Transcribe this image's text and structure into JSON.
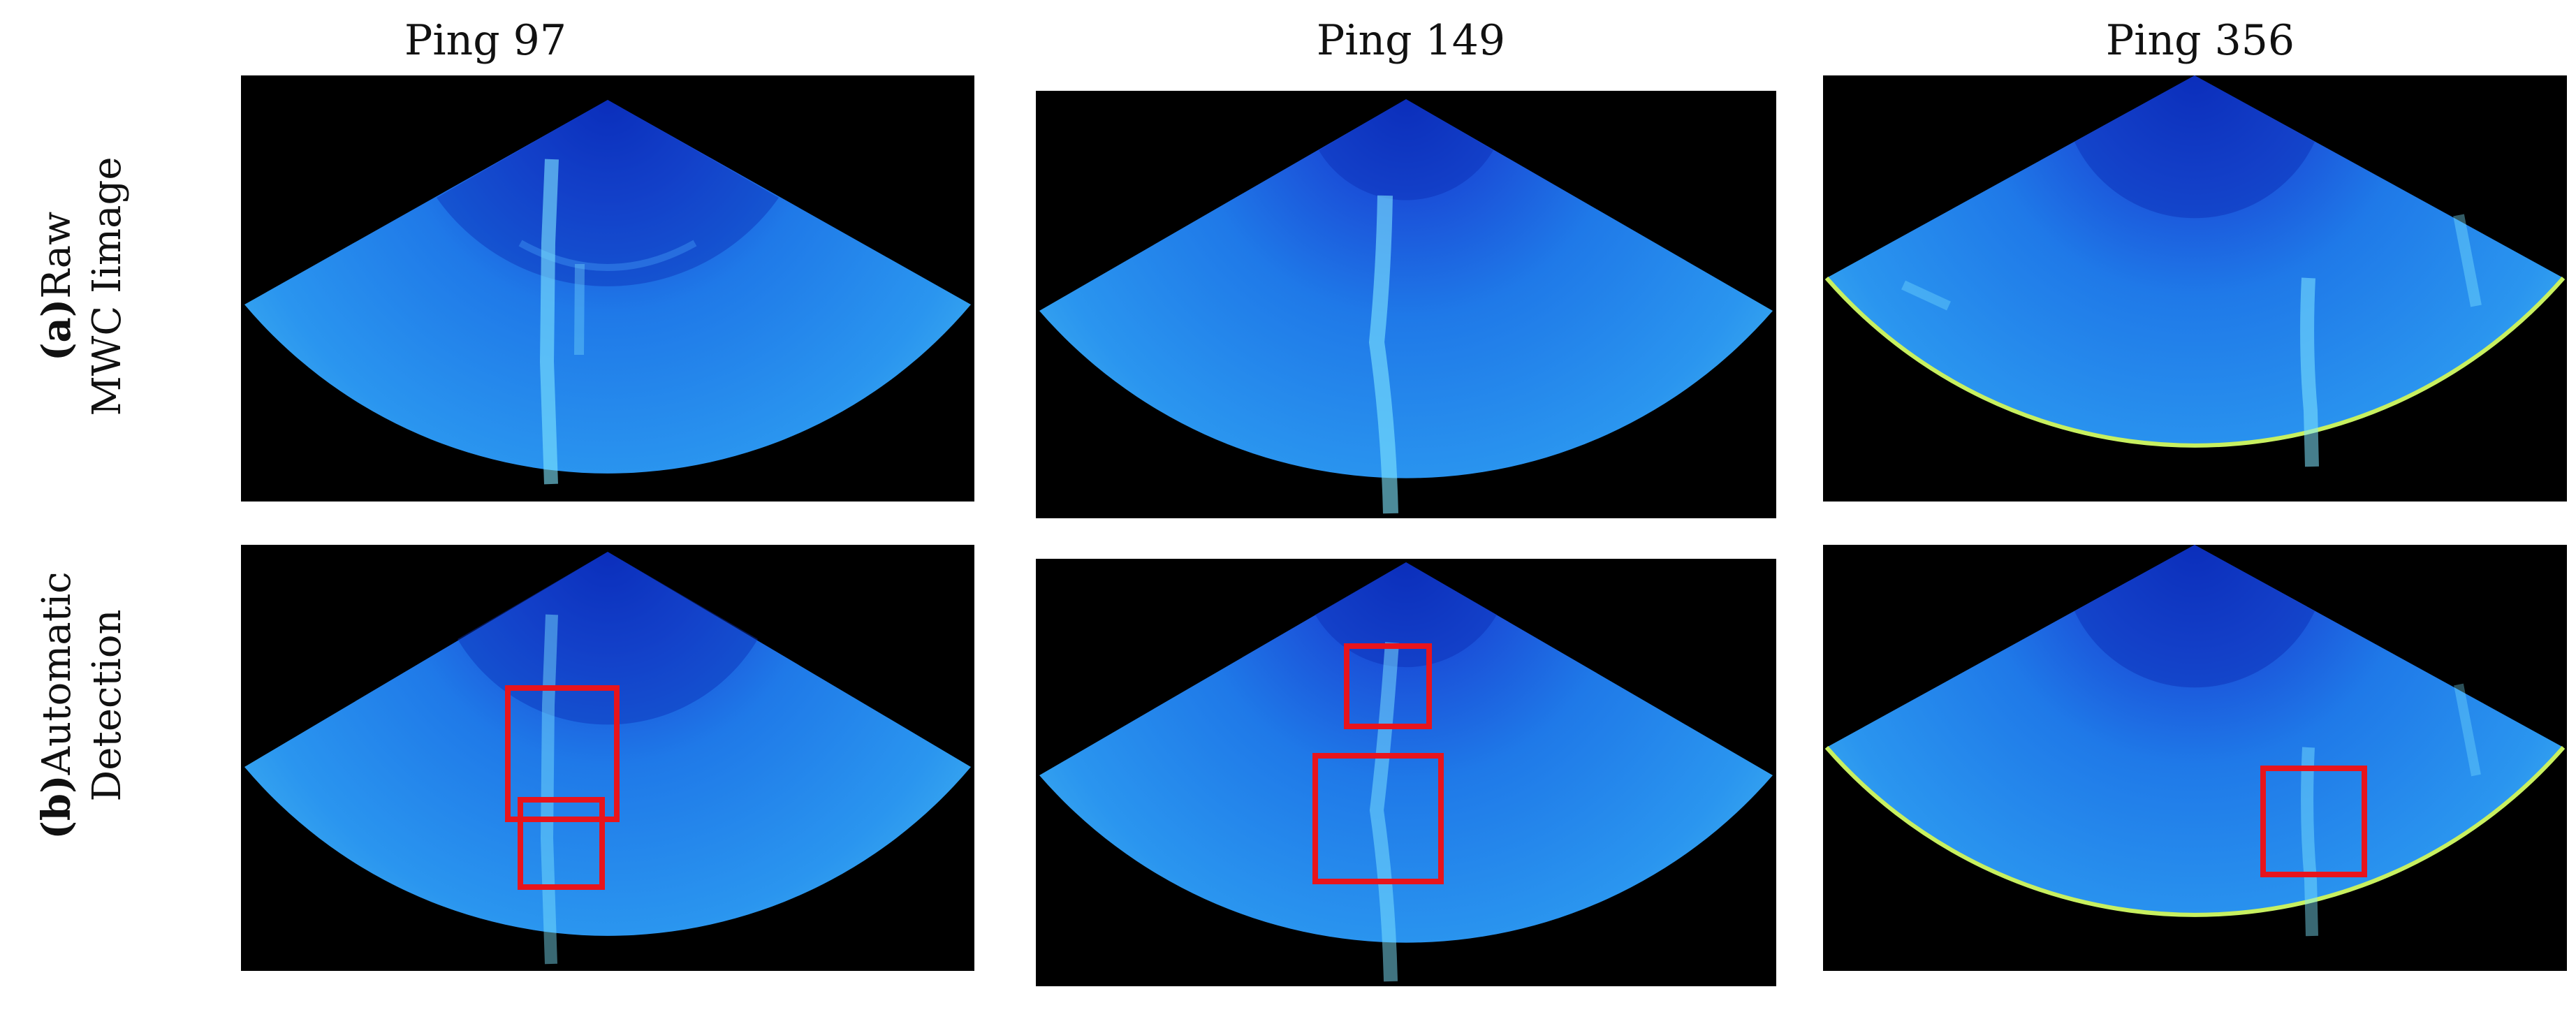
{
  "columns": [
    {
      "title": "Ping 97"
    },
    {
      "title": "Ping 149"
    },
    {
      "title": "Ping 356"
    }
  ],
  "rows": [
    {
      "letter": "(a)",
      "line1": "Raw",
      "line2": "MWC Iimage"
    },
    {
      "letter": "(b)",
      "line1": "Automatic",
      "line2": "Detection"
    }
  ],
  "colors": {
    "background": "#000000",
    "fan_deep": "#0b2dbf",
    "fan_main": "#1f79e8",
    "fan_light": "#3fb0f0",
    "highlight": "#7fe6ff",
    "detection_box": "#e8141c"
  }
}
